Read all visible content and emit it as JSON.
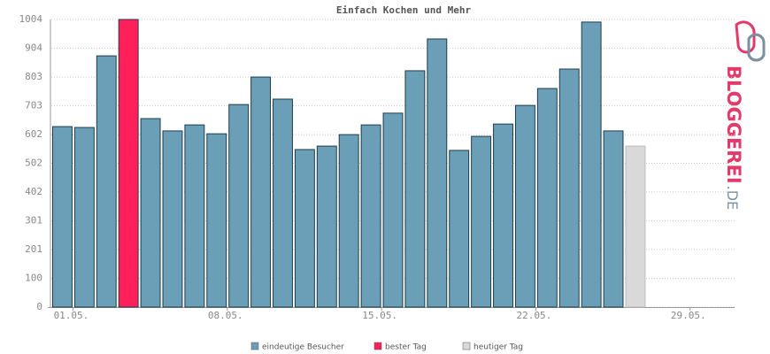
{
  "chart_data": {
    "type": "bar",
    "title": "Einfach Kochen und Mehr",
    "categories": [
      "01.05.",
      null,
      null,
      null,
      null,
      null,
      null,
      "08.05.",
      null,
      null,
      null,
      null,
      null,
      null,
      "15.05.",
      null,
      null,
      null,
      null,
      null,
      null,
      "22.05.",
      null,
      null,
      null,
      null,
      null,
      null,
      "29.05.",
      null,
      null
    ],
    "series": [
      {
        "name": "eindeutige Besucher",
        "color": "#6b9fb8",
        "values": [
          630,
          627,
          877,
          null,
          658,
          615,
          636,
          605,
          707,
          803,
          726,
          550,
          562,
          602,
          636,
          677,
          825,
          936,
          547,
          596,
          639,
          704,
          763,
          831,
          995,
          615,
          null,
          null,
          null,
          null,
          null
        ]
      },
      {
        "name": "bester Tag",
        "color": "#ff1f5a",
        "values": [
          null,
          null,
          null,
          1004,
          null,
          null,
          null,
          null,
          null,
          null,
          null,
          null,
          null,
          null,
          null,
          null,
          null,
          null,
          null,
          null,
          null,
          null,
          null,
          null,
          null,
          null,
          null,
          null,
          null,
          null,
          null
        ]
      },
      {
        "name": "heutiger Tag",
        "color": "#d9d9d9",
        "values": [
          null,
          null,
          null,
          null,
          null,
          null,
          null,
          null,
          null,
          null,
          null,
          null,
          null,
          null,
          null,
          null,
          null,
          null,
          null,
          null,
          null,
          null,
          null,
          null,
          null,
          null,
          562,
          null,
          null,
          null,
          null
        ]
      }
    ],
    "ylim": [
      0,
      1004
    ],
    "yticks": [
      0,
      100,
      201,
      301,
      402,
      502,
      602,
      703,
      803,
      904,
      1004
    ],
    "grid": true
  },
  "brand": {
    "name": "BLOGGEREI",
    "suffix": ".DE"
  }
}
